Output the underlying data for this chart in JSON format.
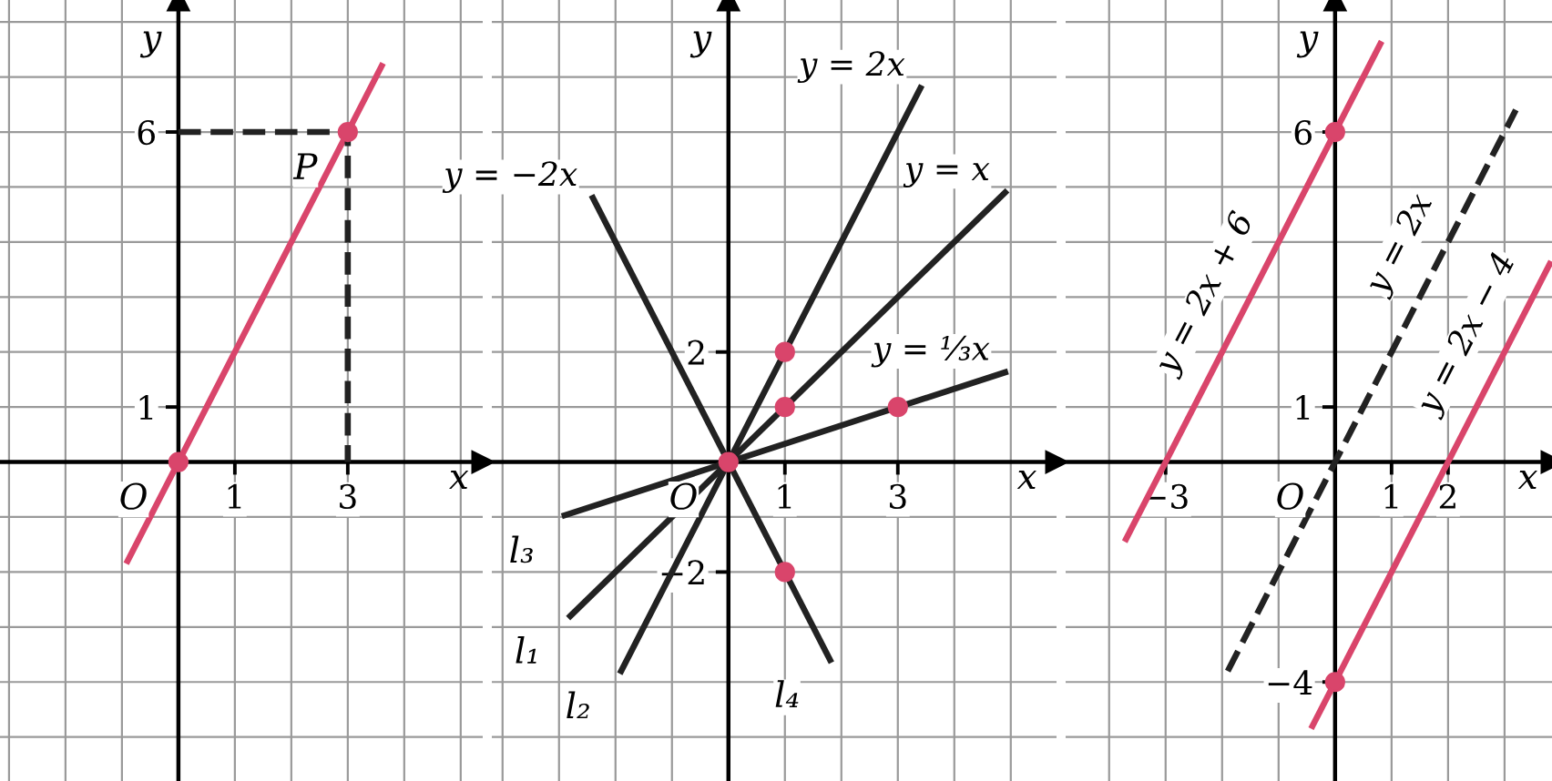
{
  "chart_data": [
    {
      "type": "line",
      "xlabel": "x",
      "ylabel": "y",
      "xlim": [
        -3.16,
        5.39
      ],
      "ylim": [
        -5.8,
        8.4
      ],
      "xticks": [
        1,
        3
      ],
      "yticks": [
        1,
        6
      ],
      "grid": true,
      "line_style": "solid",
      "series": [
        {
          "color": "#d9456b",
          "x": [
            -0.9,
            3.6
          ],
          "values": [
            -1.8,
            7.2
          ]
        },
        {
          "color": "#222222",
          "x": [
            0,
            3,
            3
          ],
          "values": [
            6,
            6,
            0
          ],
          "line_style": "dashed"
        },
        {
          "type": "scatter",
          "color": "#d9456b",
          "x": [
            0,
            3
          ],
          "values": [
            0,
            6
          ],
          "marker": "circle"
        }
      ],
      "annotations": [
        {
          "text": "O",
          "x": 0,
          "y": 0
        },
        {
          "text": "P",
          "x": 3,
          "y": 6
        }
      ]
    },
    {
      "type": "line",
      "xlabel": "x",
      "ylabel": "y",
      "xlim": [
        -4.19,
        5.81
      ],
      "ylim": [
        -5.8,
        8.4
      ],
      "xticks": [
        1,
        3
      ],
      "yticks": [
        {
          "value": -2,
          "label": "−2"
        },
        2
      ],
      "grid": true,
      "line_style": "solid",
      "series": [
        {
          "name": "y = 2x",
          "color": "#222222",
          "x": [
            -1.9,
            3.4
          ],
          "values": [
            -3.8,
            6.8
          ]
        },
        {
          "name": "y = x",
          "color": "#222222",
          "x": [
            -2.8,
            4.9
          ],
          "values": [
            -2.8,
            4.9
          ]
        },
        {
          "name": "y = ⅓x",
          "color": "#222222",
          "x": [
            -2.9,
            4.9
          ],
          "values": [
            -0.97,
            1.63
          ]
        },
        {
          "name": "y = −2x",
          "color": "#222222",
          "x": [
            -2.4,
            1.8
          ],
          "values": [
            4.8,
            -3.6
          ]
        },
        {
          "type": "scatter",
          "color": "#d9456b",
          "x": [
            0,
            1,
            1,
            3,
            1
          ],
          "values": [
            0,
            2,
            1,
            1,
            -2
          ],
          "marker": "circle"
        }
      ],
      "annotations": [
        {
          "text": "O",
          "x": 0,
          "y": 0
        },
        {
          "text": "l₁",
          "x": -2.8,
          "y": -2.8
        },
        {
          "text": "l₂",
          "x": -1.9,
          "y": -3.8
        },
        {
          "text": "l₃",
          "x": -2.9,
          "y": -0.97
        },
        {
          "text": "l₄",
          "x": 1.8,
          "y": -3.6
        }
      ]
    },
    {
      "type": "line",
      "xlabel": "x",
      "ylabel": "y",
      "xlim": [
        -4.77,
        3.84
      ],
      "ylim": [
        -5.8,
        8.4
      ],
      "xticks": [
        {
          "value": -3,
          "label": "−3"
        },
        1,
        2
      ],
      "yticks": [
        {
          "value": -4,
          "label": "−4"
        },
        1,
        6
      ],
      "grid": true,
      "line_style": "solid",
      "series": [
        {
          "name": "y = 2x + 6",
          "color": "#d9456b",
          "x": [
            -3.7,
            0.8
          ],
          "values": [
            -1.4,
            7.6
          ]
        },
        {
          "name": "y = 2x",
          "color": "#222222",
          "x": [
            -1.9,
            3.2
          ],
          "values": [
            -3.8,
            6.4
          ],
          "line_style": "dashed"
        },
        {
          "name": "y = 2x − 4",
          "color": "#d9456b",
          "x": [
            -0.4,
            3.8
          ],
          "values": [
            -4.8,
            3.6
          ]
        },
        {
          "type": "scatter",
          "color": "#d9456b",
          "x": [
            0,
            0
          ],
          "values": [
            6,
            -4
          ],
          "marker": "circle"
        }
      ],
      "annotations": [
        {
          "text": "O",
          "x": 0,
          "y": 0
        }
      ]
    }
  ]
}
